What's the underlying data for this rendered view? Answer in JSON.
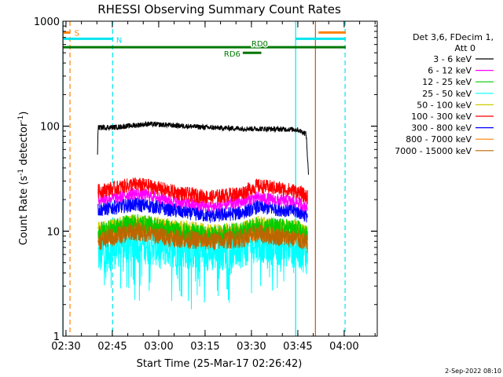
{
  "chart_data": {
    "type": "line",
    "title": "RHESSI Observing Summary Count Rates",
    "xlabel": "Start Time (25-Mar-17 02:26:42)",
    "ylabel_main": "Count Rate (s",
    "ylabel_sup1": "-1",
    "ylabel_mid": " detector",
    "ylabel_sup2": "-1",
    "ylabel_end": ")",
    "y_scale": "log",
    "ylim": [
      1,
      1000
    ],
    "xlim_minutes": [
      2.3,
      104
    ],
    "x_ticks": [
      {
        "label": "02:30",
        "minutes": 3.3
      },
      {
        "label": "02:45",
        "minutes": 18.3
      },
      {
        "label": "03:00",
        "minutes": 33.3
      },
      {
        "label": "03:15",
        "minutes": 48.3
      },
      {
        "label": "03:30",
        "minutes": 63.3
      },
      {
        "label": "03:45",
        "minutes": 78.3
      },
      {
        "label": "04:00",
        "minutes": 93.3
      }
    ],
    "y_ticks": [
      {
        "label": "1",
        "value": 1
      },
      {
        "label": "10",
        "value": 10
      },
      {
        "label": "100",
        "value": 100
      },
      {
        "label": "1000",
        "value": 1000
      }
    ],
    "legend_header": [
      "Det 3,6, FDecim 1,",
      "Att 0"
    ],
    "legend_placement": "right",
    "data_start_minutes": 13.5,
    "data_end_minutes": 81.8,
    "series": [
      {
        "name": "3 - 6 keV",
        "color": "#000000",
        "values": [
          {
            "x": 13.5,
            "y": 55
          },
          {
            "x": 13.7,
            "y": 97
          },
          {
            "x": 20,
            "y": 98
          },
          {
            "x": 30,
            "y": 105
          },
          {
            "x": 40,
            "y": 101
          },
          {
            "x": 50,
            "y": 97
          },
          {
            "x": 60,
            "y": 95
          },
          {
            "x": 70,
            "y": 94
          },
          {
            "x": 78,
            "y": 93
          },
          {
            "x": 81,
            "y": 85
          },
          {
            "x": 81.8,
            "y": 33
          }
        ]
      },
      {
        "name": "6 - 12 keV",
        "color": "#ff00ff",
        "values": [
          {
            "x": 13.7,
            "y": 20
          },
          {
            "x": 20,
            "y": 21
          },
          {
            "x": 25,
            "y": 23
          },
          {
            "x": 30,
            "y": 22
          },
          {
            "x": 40,
            "y": 19
          },
          {
            "x": 50,
            "y": 17
          },
          {
            "x": 60,
            "y": 19
          },
          {
            "x": 65,
            "y": 21
          },
          {
            "x": 70,
            "y": 20
          },
          {
            "x": 78,
            "y": 19
          },
          {
            "x": 81.5,
            "y": 17
          }
        ]
      },
      {
        "name": "12 - 25 keV",
        "color": "#00cc00",
        "values": [
          {
            "x": 13.7,
            "y": 10
          },
          {
            "x": 20,
            "y": 11
          },
          {
            "x": 25,
            "y": 12
          },
          {
            "x": 30,
            "y": 11.5
          },
          {
            "x": 40,
            "y": 10
          },
          {
            "x": 50,
            "y": 9
          },
          {
            "x": 60,
            "y": 10
          },
          {
            "x": 65,
            "y": 11
          },
          {
            "x": 70,
            "y": 11
          },
          {
            "x": 78,
            "y": 10.5
          },
          {
            "x": 81.5,
            "y": 9
          }
        ]
      },
      {
        "name": "25 - 50 keV",
        "color": "#00ffff",
        "values": [
          {
            "x": 13.7,
            "y": 6
          },
          {
            "x": 20,
            "y": 7
          },
          {
            "x": 25,
            "y": 8
          },
          {
            "x": 30,
            "y": 7.5
          },
          {
            "x": 40,
            "y": 7
          },
          {
            "x": 50,
            "y": 6.5
          },
          {
            "x": 60,
            "y": 7
          },
          {
            "x": 65,
            "y": 8
          },
          {
            "x": 70,
            "y": 7.5
          },
          {
            "x": 78,
            "y": 7
          },
          {
            "x": 81.5,
            "y": 6
          }
        ]
      },
      {
        "name": "50 - 100 keV",
        "color": "#cccc00",
        "values": [
          {
            "x": 13.7,
            "y": 10
          },
          {
            "x": 20,
            "y": 11
          },
          {
            "x": 25,
            "y": 12
          },
          {
            "x": 30,
            "y": 11.5
          },
          {
            "x": 40,
            "y": 10.5
          },
          {
            "x": 50,
            "y": 9.5
          },
          {
            "x": 60,
            "y": 10
          },
          {
            "x": 65,
            "y": 11.5
          },
          {
            "x": 70,
            "y": 11
          },
          {
            "x": 78,
            "y": 10.5
          },
          {
            "x": 81.5,
            "y": 9
          }
        ]
      },
      {
        "name": "100 - 300 keV",
        "color": "#ff0000",
        "values": [
          {
            "x": 13.7,
            "y": 24
          },
          {
            "x": 20,
            "y": 26
          },
          {
            "x": 25,
            "y": 28
          },
          {
            "x": 30,
            "y": 27
          },
          {
            "x": 40,
            "y": 23
          },
          {
            "x": 50,
            "y": 21
          },
          {
            "x": 60,
            "y": 23
          },
          {
            "x": 65,
            "y": 27
          },
          {
            "x": 70,
            "y": 26
          },
          {
            "x": 78,
            "y": 24
          },
          {
            "x": 81.5,
            "y": 21
          }
        ]
      },
      {
        "name": "300 - 800 keV",
        "color": "#0000ff",
        "values": [
          {
            "x": 13.7,
            "y": 16
          },
          {
            "x": 20,
            "y": 17
          },
          {
            "x": 25,
            "y": 18
          },
          {
            "x": 30,
            "y": 17.5
          },
          {
            "x": 40,
            "y": 15.5
          },
          {
            "x": 50,
            "y": 14
          },
          {
            "x": 60,
            "y": 15
          },
          {
            "x": 65,
            "y": 17
          },
          {
            "x": 70,
            "y": 16.5
          },
          {
            "x": 78,
            "y": 15.5
          },
          {
            "x": 81.5,
            "y": 14
          }
        ]
      },
      {
        "name": "800 - 7000 keV",
        "color": "#ff8000",
        "values": [
          {
            "x": 13.7,
            "y": 9
          },
          {
            "x": 20,
            "y": 10
          },
          {
            "x": 25,
            "y": 11
          },
          {
            "x": 30,
            "y": 10.5
          },
          {
            "x": 40,
            "y": 9
          },
          {
            "x": 50,
            "y": 8.5
          },
          {
            "x": 60,
            "y": 9
          },
          {
            "x": 65,
            "y": 10
          },
          {
            "x": 70,
            "y": 9.5
          },
          {
            "x": 78,
            "y": 9
          },
          {
            "x": 81.5,
            "y": 8
          }
        ]
      },
      {
        "name": "7000 - 15000 keV",
        "color": "#bb6600",
        "values": [
          {
            "x": 13.7,
            "y": 8
          },
          {
            "x": 20,
            "y": 9
          },
          {
            "x": 25,
            "y": 10
          },
          {
            "x": 30,
            "y": 9.5
          },
          {
            "x": 40,
            "y": 8.5
          },
          {
            "x": 50,
            "y": 8
          },
          {
            "x": 60,
            "y": 8.5
          },
          {
            "x": 65,
            "y": 9.5
          },
          {
            "x": 70,
            "y": 9
          },
          {
            "x": 78,
            "y": 8.5
          },
          {
            "x": 81.5,
            "y": 7.5
          }
        ]
      }
    ],
    "annotations": [
      {
        "label": "S",
        "color": "#ff8000",
        "x_start": 2.3,
        "x_end": 4.5,
        "level": 780
      },
      {
        "label": "N",
        "color": "#00e5ee",
        "x_start": 2.3,
        "x_end": 18.3,
        "level": 680
      },
      {
        "label": "",
        "color": "#00e5ee",
        "x_start": 77.5,
        "x_end": 93.8,
        "level": 680
      },
      {
        "label": "",
        "color": "#ff8000",
        "x_start": 85,
        "x_end": 93.8,
        "level": 780
      },
      {
        "label": "RD0",
        "color": "#007700",
        "x_start": 2.3,
        "x_end": 93.8,
        "level": 565
      },
      {
        "label": "RD6",
        "color": "#007700",
        "x_start": 60.5,
        "x_end": 66.5,
        "level": 500
      }
    ],
    "vertical_lines": [
      {
        "color": "#00e5ee",
        "style": "solid",
        "x": 2.4
      },
      {
        "color": "#ff8000",
        "style": "dashed",
        "x": 4.6
      },
      {
        "color": "#00e5ee",
        "style": "dashed",
        "x": 18.4
      },
      {
        "color": "#00e5ee",
        "style": "solid",
        "x": 77.6
      },
      {
        "color": "#cc5500",
        "style": "solid",
        "x": 84.0
      },
      {
        "color": "#00e5ee",
        "style": "dashed",
        "x": 93.6
      }
    ]
  },
  "footer_timestamp": "2-Sep-2022 08:10"
}
